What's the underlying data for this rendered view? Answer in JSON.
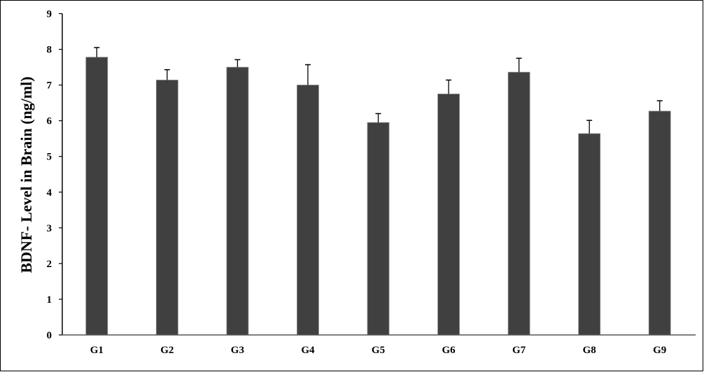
{
  "chart_data": {
    "type": "bar",
    "title": "",
    "xlabel": "",
    "ylabel": "BDNF- Level in Brain (ng/ml)",
    "categories": [
      "G1",
      "G2",
      "G3",
      "G4",
      "G5",
      "G6",
      "G7",
      "G8",
      "G9"
    ],
    "values": [
      7.78,
      7.14,
      7.5,
      7.0,
      5.95,
      6.75,
      7.36,
      5.64,
      6.27
    ],
    "error_upper": [
      0.27,
      0.29,
      0.21,
      0.57,
      0.25,
      0.39,
      0.39,
      0.37,
      0.29
    ],
    "ylim": [
      0,
      9
    ],
    "yticks": [
      "0",
      "1",
      "2",
      "3",
      "4",
      "5",
      "6",
      "7",
      "8",
      "9"
    ],
    "grid": false,
    "legend": "none",
    "bar_color": "#404040"
  }
}
